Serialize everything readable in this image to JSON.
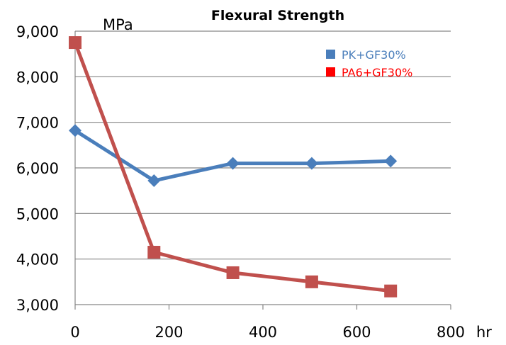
{
  "chart_data": {
    "type": "line",
    "title": "Flexural Strength",
    "ylabel": "MPa",
    "xlabel": "hr",
    "xlim": [
      0,
      800
    ],
    "ylim": [
      3000,
      9000
    ],
    "x_ticks": [
      0,
      200,
      400,
      600,
      800
    ],
    "y_ticks": [
      3000,
      4000,
      5000,
      6000,
      7000,
      8000,
      9000
    ],
    "x_tick_labels": [
      "0",
      "200",
      "400",
      "600",
      "800"
    ],
    "y_tick_labels": [
      "3,000",
      "4,000",
      "5,000",
      "6,000",
      "7,000",
      "8,000",
      "9,000"
    ],
    "grid": "horizontal",
    "legend_position": "top-right",
    "series": [
      {
        "name": "PK+GF30%",
        "color": "#4a7ebb",
        "marker": "diamond",
        "x": [
          0,
          168,
          336,
          504,
          672
        ],
        "y": [
          6820,
          5720,
          6100,
          6100,
          6150
        ]
      },
      {
        "name": "PA6+GF30%",
        "color": "#c0504d",
        "legend_color": "#ff0000",
        "marker": "square",
        "x": [
          0,
          168,
          336,
          504,
          672
        ],
        "y": [
          8750,
          4150,
          3700,
          3500,
          3300
        ]
      }
    ]
  }
}
